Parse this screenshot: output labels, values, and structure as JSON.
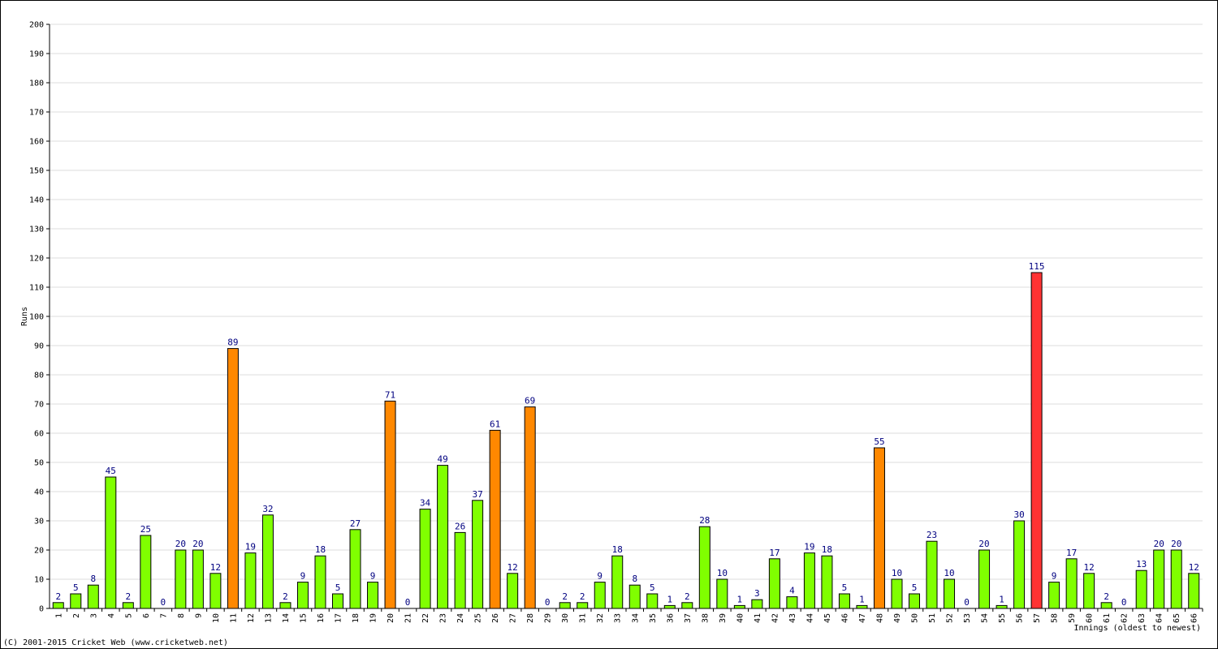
{
  "chart_data": {
    "type": "bar",
    "y_label": "Runs",
    "x_label": "Innings (oldest to newest)",
    "footer": "(C) 2001-2015 Cricket Web (www.cricketweb.net)",
    "categories": [
      "1",
      "2",
      "3",
      "4",
      "5",
      "6",
      "7",
      "8",
      "9",
      "10",
      "11",
      "12",
      "13",
      "14",
      "15",
      "16",
      "17",
      "18",
      "19",
      "20",
      "21",
      "22",
      "23",
      "24",
      "25",
      "26",
      "27",
      "28",
      "29",
      "30",
      "31",
      "32",
      "33",
      "34",
      "35",
      "36",
      "37",
      "38",
      "39",
      "40",
      "41",
      "42",
      "43",
      "44",
      "45",
      "46",
      "47",
      "48",
      "49",
      "50",
      "51",
      "52",
      "53",
      "54",
      "55",
      "56",
      "57",
      "58",
      "59",
      "60",
      "61",
      "62",
      "63",
      "64",
      "65",
      "66"
    ],
    "values": [
      2,
      5,
      8,
      45,
      2,
      25,
      0,
      20,
      20,
      12,
      89,
      19,
      32,
      2,
      9,
      18,
      5,
      27,
      9,
      71,
      0,
      34,
      49,
      26,
      37,
      61,
      12,
      69,
      0,
      2,
      2,
      9,
      18,
      8,
      5,
      1,
      2,
      28,
      10,
      1,
      3,
      17,
      4,
      19,
      18,
      5,
      1,
      55,
      10,
      5,
      23,
      10,
      0,
      20,
      1,
      30,
      115,
      9,
      17,
      12,
      2,
      0,
      13,
      20,
      20,
      12
    ],
    "colors": [
      "#80ff00",
      "#80ff00",
      "#80ff00",
      "#80ff00",
      "#80ff00",
      "#80ff00",
      "#80ff00",
      "#80ff00",
      "#80ff00",
      "#80ff00",
      "#ff8800",
      "#80ff00",
      "#80ff00",
      "#80ff00",
      "#80ff00",
      "#80ff00",
      "#80ff00",
      "#80ff00",
      "#80ff00",
      "#ff8800",
      "#80ff00",
      "#80ff00",
      "#80ff00",
      "#80ff00",
      "#80ff00",
      "#ff8800",
      "#80ff00",
      "#ff8800",
      "#80ff00",
      "#80ff00",
      "#80ff00",
      "#80ff00",
      "#80ff00",
      "#80ff00",
      "#80ff00",
      "#80ff00",
      "#80ff00",
      "#80ff00",
      "#80ff00",
      "#80ff00",
      "#80ff00",
      "#80ff00",
      "#80ff00",
      "#80ff00",
      "#80ff00",
      "#80ff00",
      "#80ff00",
      "#ff8800",
      "#80ff00",
      "#80ff00",
      "#80ff00",
      "#80ff00",
      "#80ff00",
      "#80ff00",
      "#80ff00",
      "#80ff00",
      "#ff3333",
      "#80ff00",
      "#80ff00",
      "#80ff00",
      "#80ff00",
      "#80ff00",
      "#80ff00",
      "#80ff00",
      "#80ff00",
      "#80ff00"
    ],
    "ylim": [
      0,
      200
    ],
    "yticks": [
      0,
      10,
      20,
      30,
      40,
      50,
      60,
      70,
      80,
      90,
      100,
      110,
      120,
      130,
      140,
      150,
      160,
      170,
      180,
      190,
      200
    ],
    "grid": true
  }
}
